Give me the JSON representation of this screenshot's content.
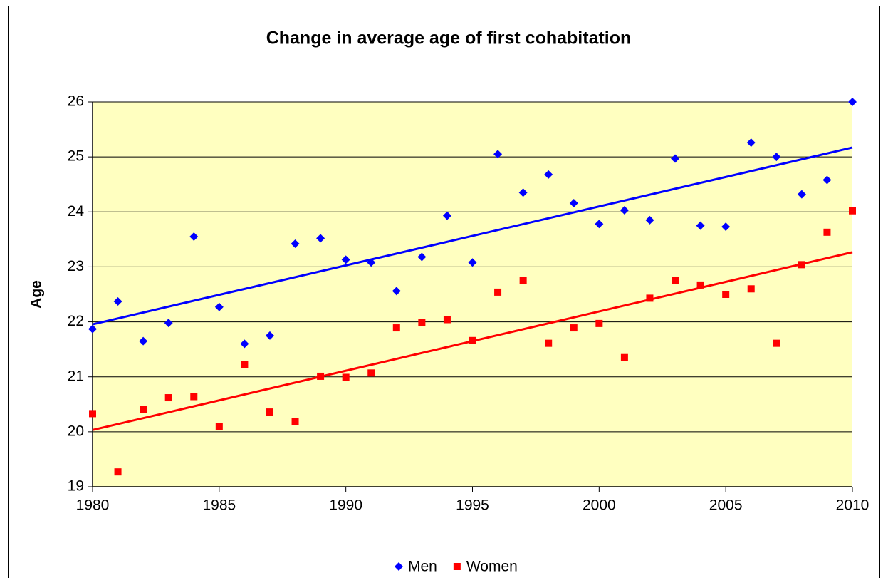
{
  "chart_data": {
    "type": "scatter",
    "title": "Change in average age of first cohabitation",
    "ylabel": "Age",
    "x": [
      1980,
      1981,
      1982,
      1983,
      1984,
      1985,
      1986,
      1987,
      1988,
      1989,
      1990,
      1991,
      1992,
      1993,
      1994,
      1995,
      1996,
      1997,
      1998,
      1999,
      2000,
      2001,
      2002,
      2003,
      2004,
      2005,
      2006,
      2007,
      2008,
      2009,
      2010
    ],
    "series": [
      {
        "name": "Men",
        "color": "#0000ff",
        "marker": "diamond",
        "trendline": "linear",
        "values": [
          21.87,
          22.37,
          21.65,
          21.98,
          23.55,
          22.27,
          21.6,
          21.75,
          23.42,
          23.52,
          23.13,
          23.08,
          22.56,
          23.18,
          23.93,
          23.08,
          25.05,
          24.35,
          24.68,
          24.16,
          23.78,
          24.03,
          23.85,
          24.97,
          23.75,
          23.73,
          25.26,
          25.0,
          24.32,
          24.58,
          26.0
        ]
      },
      {
        "name": "Women",
        "color": "#ff0000",
        "marker": "square",
        "trendline": "linear",
        "values": [
          20.33,
          19.27,
          20.41,
          20.62,
          20.64,
          20.1,
          21.22,
          20.36,
          20.18,
          21.01,
          20.99,
          21.07,
          21.89,
          21.99,
          22.04,
          21.66,
          22.54,
          22.75,
          21.61,
          21.89,
          21.97,
          21.35,
          22.43,
          22.75,
          22.67,
          22.5,
          22.6,
          21.61,
          23.04,
          23.63,
          24.02
        ]
      }
    ],
    "xlim": [
      1980,
      2010
    ],
    "xticks": [
      1980,
      1985,
      1990,
      1995,
      2000,
      2005,
      2010
    ],
    "ylim": [
      19,
      26
    ],
    "yticks": [
      19,
      20,
      21,
      22,
      23,
      24,
      25,
      26
    ],
    "grid": true,
    "legend": "bottom"
  }
}
